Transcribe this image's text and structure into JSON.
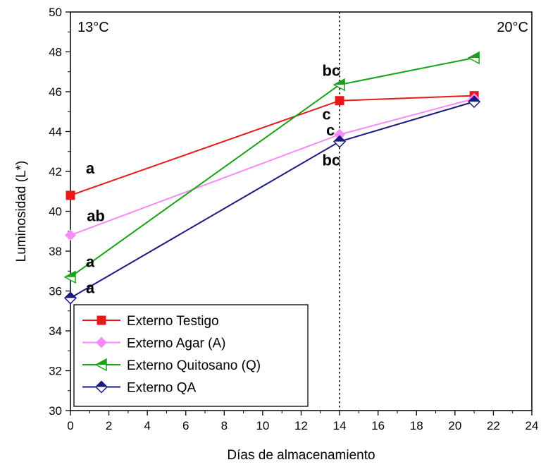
{
  "chart_data": {
    "type": "line",
    "xlabel": "Días de almacenamiento",
    "ylabel": "Luminosidad (L*)",
    "xlim": [
      0,
      24
    ],
    "ylim": [
      30,
      50
    ],
    "x_ticks": [
      0,
      2,
      4,
      6,
      8,
      10,
      12,
      14,
      16,
      18,
      20,
      22,
      24
    ],
    "y_ticks": [
      30,
      32,
      34,
      36,
      38,
      40,
      42,
      44,
      46,
      48,
      50
    ],
    "grid": false,
    "legend_position": "bottom-left",
    "reference_line": {
      "x": 14,
      "style": "dotted"
    },
    "regions": {
      "left": "13°C",
      "right": "20°C"
    },
    "series": [
      {
        "name": "Externo Testigo",
        "color": "#e8191b",
        "marker": "square",
        "x": [
          0,
          14,
          21
        ],
        "y": [
          40.8,
          45.55,
          45.8
        ]
      },
      {
        "name": "Externo Agar (A)",
        "color": "#f58cf5",
        "marker": "diamond",
        "x": [
          0,
          14,
          21
        ],
        "y": [
          38.8,
          43.85,
          45.65
        ]
      },
      {
        "name": "Externo Quitosano (Q)",
        "color": "#17a317",
        "marker": "triangle-left-half",
        "x": [
          0,
          14,
          21
        ],
        "y": [
          36.7,
          46.35,
          47.7
        ]
      },
      {
        "name": "Externo QA",
        "color": "#1a1a80",
        "marker": "diamond-half",
        "x": [
          0,
          14,
          21
        ],
        "y": [
          35.65,
          43.5,
          45.5
        ]
      }
    ],
    "annotations": [
      {
        "text": "a",
        "x": 0.8,
        "y": 41.9
      },
      {
        "text": "ab",
        "x": 0.85,
        "y": 39.5
      },
      {
        "text": "a",
        "x": 0.8,
        "y": 37.2
      },
      {
        "text": "a",
        "x": 0.8,
        "y": 35.9
      },
      {
        "text": "bc",
        "x": 13.1,
        "y": 46.8
      },
      {
        "text": "c",
        "x": 13.1,
        "y": 44.6
      },
      {
        "text": "c",
        "x": 13.3,
        "y": 43.8
      },
      {
        "text": "bc",
        "x": 13.1,
        "y": 42.3
      }
    ]
  }
}
